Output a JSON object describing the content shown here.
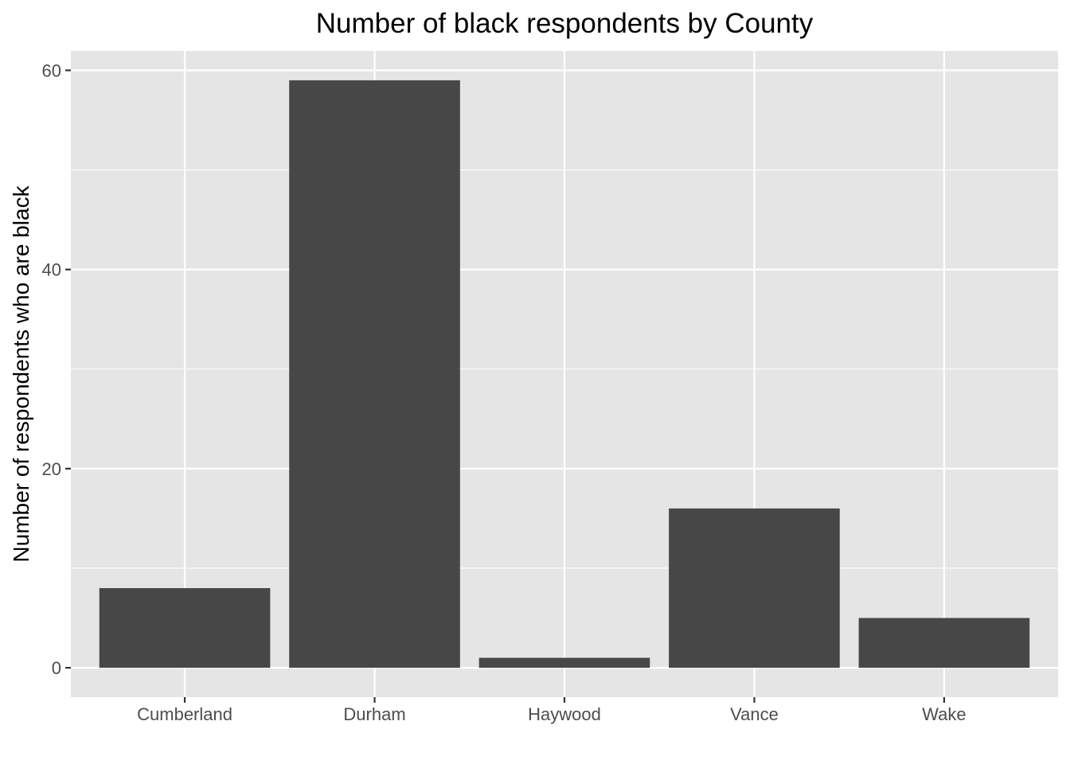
{
  "chart_data": {
    "type": "bar",
    "title": "Number of black respondents by County",
    "xlabel": "",
    "ylabel": "Number of respondents who are black",
    "categories": [
      "Cumberland",
      "Durham",
      "Haywood",
      "Vance",
      "Wake"
    ],
    "values": [
      8,
      59,
      1,
      16,
      5
    ],
    "ylim": [
      -2.95,
      61.95
    ],
    "yticks": [
      0,
      20,
      40,
      60
    ],
    "ytick_labels": [
      "0",
      "20",
      "40",
      "60"
    ],
    "grid": true,
    "legend": "none",
    "colors": {
      "bar": "#474747",
      "panel_background": "#e5e5e5",
      "grid_line": "#ffffff",
      "tick_mark": "#333333",
      "tick_label": "#4d4d4d",
      "text": "#000000"
    }
  }
}
